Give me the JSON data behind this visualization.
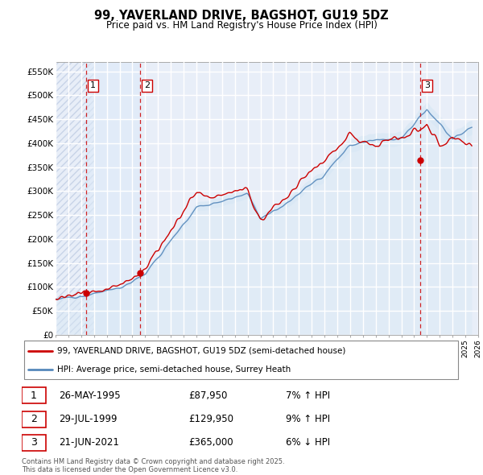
{
  "title": "99, YAVERLAND DRIVE, BAGSHOT, GU19 5DZ",
  "subtitle": "Price paid vs. HM Land Registry's House Price Index (HPI)",
  "ylim": [
    0,
    570000
  ],
  "yticks": [
    0,
    50000,
    100000,
    150000,
    200000,
    250000,
    300000,
    350000,
    400000,
    450000,
    500000,
    550000
  ],
  "ytick_labels": [
    "£0",
    "£50K",
    "£100K",
    "£150K",
    "£200K",
    "£250K",
    "£300K",
    "£350K",
    "£400K",
    "£450K",
    "£500K",
    "£550K"
  ],
  "x_start_year": 1993,
  "x_end_year": 2026,
  "sale_color": "#cc0000",
  "hpi_color": "#5588bb",
  "hpi_fill_color": "#d8e8f5",
  "background_color": "#ffffff",
  "plot_bg_color": "#e8eef8",
  "hatch_color": "#c8d4e8",
  "grid_color": "#ffffff",
  "vline_color": "#cc0000",
  "sale_points": [
    {
      "year": 1995.4,
      "price": 87950,
      "label": "1"
    },
    {
      "year": 1999.6,
      "price": 129950,
      "label": "2"
    },
    {
      "year": 2021.5,
      "price": 365000,
      "label": "3"
    }
  ],
  "sale_info": [
    {
      "label": "1",
      "date": "26-MAY-1995",
      "price": "£87,950",
      "pct": "7%",
      "dir": "↑",
      "ref": "HPI"
    },
    {
      "label": "2",
      "date": "29-JUL-1999",
      "price": "£129,950",
      "pct": "9%",
      "dir": "↑",
      "ref": "HPI"
    },
    {
      "label": "3",
      "date": "21-JUN-2021",
      "price": "£365,000",
      "pct": "6%",
      "dir": "↓",
      "ref": "HPI"
    }
  ],
  "legend_entries": [
    {
      "label": "99, YAVERLAND DRIVE, BAGSHOT, GU19 5DZ (semi-detached house)",
      "color": "#cc0000"
    },
    {
      "label": "HPI: Average price, semi-detached house, Surrey Heath",
      "color": "#5588bb"
    }
  ],
  "footer": "Contains HM Land Registry data © Crown copyright and database right 2025.\nThis data is licensed under the Open Government Licence v3.0."
}
